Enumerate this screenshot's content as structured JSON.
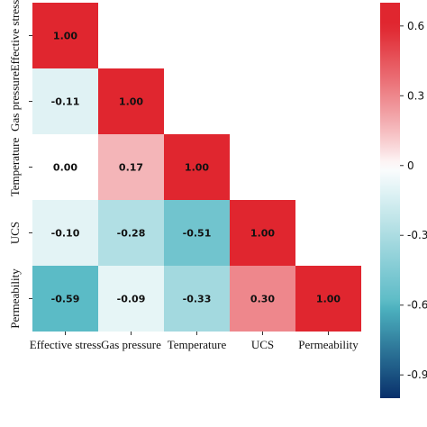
{
  "chart_data": {
    "type": "heatmap",
    "variables": [
      "Effective stress",
      "Gas pressure",
      "Temperature",
      "UCS",
      "Permeability"
    ],
    "matrix": [
      [
        1.0,
        null,
        null,
        null,
        null
      ],
      [
        -0.11,
        1.0,
        null,
        null,
        null
      ],
      [
        0.0,
        0.17,
        1.0,
        null,
        null
      ],
      [
        -0.1,
        -0.28,
        -0.51,
        1.0,
        null
      ],
      [
        -0.59,
        -0.09,
        -0.33,
        0.3,
        1.0
      ]
    ],
    "labels": [
      [
        "1.00",
        null,
        null,
        null,
        null
      ],
      [
        "-0.11",
        "1.00",
        null,
        null,
        null
      ],
      [
        "0.00",
        "0.17",
        "1.00",
        null,
        null
      ],
      [
        "-0.10",
        "-0.28",
        "-0.51",
        "1.00",
        null
      ],
      [
        "-0.59",
        "-0.09",
        "-0.33",
        "0.30",
        "1.00"
      ]
    ],
    "triangle": "lower",
    "colorbar": {
      "min": -1.0,
      "max": 0.7,
      "ticks": [
        0.6,
        0.3,
        0,
        -0.3,
        -0.6,
        -0.9
      ],
      "tick_labels": [
        "0.6",
        "0.3",
        "0",
        "-0.3",
        "-0.6",
        "-0.9"
      ],
      "placement": "right"
    },
    "colors": {
      "negative_end": "#08306b",
      "mid_neg": "#4fb6c2",
      "zero": "#ffffff",
      "positive_end": "#e0262f"
    }
  }
}
